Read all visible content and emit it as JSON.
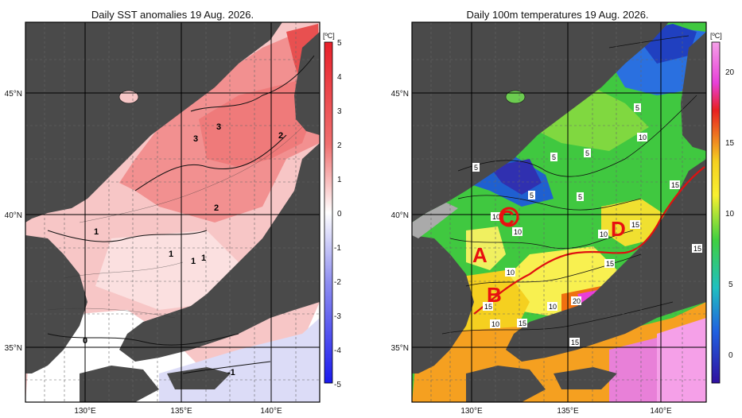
{
  "left": {
    "title": "Daily SST anomalies 19 Aug. 2026.",
    "unit": "[ºC]",
    "lat_labels": [
      "45°N",
      "40°N",
      "35°N"
    ],
    "lon_labels": [
      "130°E",
      "135°E",
      "140°E"
    ],
    "colorbar_ticks": [
      "5",
      "4",
      "3",
      "2",
      "1",
      "0",
      "-1",
      "-2",
      "-3",
      "-4",
      "-5"
    ],
    "contour_labels": [
      "3",
      "3",
      "2",
      "2",
      "1",
      "1",
      "1",
      "1",
      "0",
      "-1"
    ],
    "colors": {
      "land": "#4a4a4a",
      "warm_max": "#e8202a",
      "cold_max": "#1a1aee"
    }
  },
  "right": {
    "title": "Daily 100m temperatures 19 Aug. 2026.",
    "unit": "[ºC]",
    "lat_labels": [
      "45°N",
      "40°N",
      "35°N"
    ],
    "lon_labels": [
      "130°E",
      "135°E",
      "140°E"
    ],
    "colorbar_ticks": [
      "20",
      "15",
      "10",
      "5",
      "0"
    ],
    "contour_labels": [
      "5",
      "5",
      "5",
      "5",
      "5",
      "10",
      "5",
      "10",
      "10",
      "10",
      "15",
      "15",
      "15",
      "10",
      "15",
      "10",
      "20",
      "15",
      "10",
      "15",
      "15"
    ],
    "region_labels": [
      "A",
      "B",
      "C",
      "D"
    ],
    "colors": {
      "land": "#4a4a4a",
      "front": "#e01010",
      "annotation": "#e81010"
    }
  }
}
